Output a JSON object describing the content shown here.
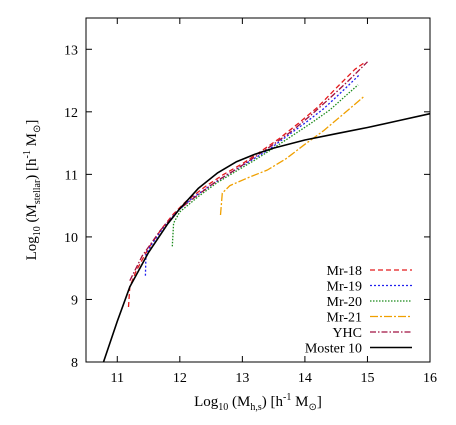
{
  "chart_data": {
    "type": "line",
    "title": "",
    "xlabel": {
      "prefix": "Log",
      "prefix_sub": "10",
      "open": " (M",
      "main_sub": "h,s",
      "unit_open": ") [h",
      "unit_sup": "-1",
      "unit_mid": " M",
      "unit_sub": "⊙",
      "unit_close": "]"
    },
    "ylabel": {
      "prefix": "Log",
      "prefix_sub": "10",
      "open": " (M",
      "main_sub": "stellar",
      "unit_open": ") [h",
      "unit_sup": "-1",
      "unit_mid": " M",
      "unit_sub": "⊙",
      "unit_close": "]"
    },
    "xlim": [
      10.5,
      16
    ],
    "ylim": [
      8,
      13.5
    ],
    "x_ticks": [
      11,
      12,
      13,
      14,
      15,
      16
    ],
    "y_ticks": [
      8,
      9,
      10,
      11,
      12,
      13
    ],
    "legend_position": "bottom-right",
    "series": [
      {
        "name": "Mr-18",
        "color": "#e41a1c",
        "dash": "5,3",
        "points": [
          [
            11.18,
            8.88
          ],
          [
            11.2,
            9.2
          ],
          [
            11.3,
            9.45
          ],
          [
            11.5,
            9.82
          ],
          [
            11.7,
            10.12
          ],
          [
            11.9,
            10.37
          ],
          [
            12.1,
            10.57
          ],
          [
            12.4,
            10.8
          ],
          [
            12.7,
            11.0
          ],
          [
            13.0,
            11.17
          ],
          [
            13.3,
            11.37
          ],
          [
            13.6,
            11.58
          ],
          [
            13.9,
            11.82
          ],
          [
            14.2,
            12.07
          ],
          [
            14.5,
            12.38
          ],
          [
            14.8,
            12.68
          ],
          [
            14.97,
            12.8
          ]
        ]
      },
      {
        "name": "Mr-19",
        "color": "#2020ee",
        "dash": "2,2",
        "points": [
          [
            11.45,
            9.38
          ],
          [
            11.46,
            9.72
          ],
          [
            11.55,
            9.88
          ],
          [
            11.75,
            10.17
          ],
          [
            11.95,
            10.4
          ],
          [
            12.2,
            10.62
          ],
          [
            12.5,
            10.83
          ],
          [
            12.8,
            11.02
          ],
          [
            13.1,
            11.2
          ],
          [
            13.4,
            11.38
          ],
          [
            13.7,
            11.6
          ],
          [
            14.0,
            11.82
          ],
          [
            14.3,
            12.05
          ],
          [
            14.6,
            12.33
          ],
          [
            14.88,
            12.6
          ]
        ]
      },
      {
        "name": "Mr-20",
        "color": "#1a8a1a",
        "dash": "1.5,1.5",
        "points": [
          [
            11.88,
            9.85
          ],
          [
            11.9,
            10.22
          ],
          [
            12.0,
            10.4
          ],
          [
            12.3,
            10.65
          ],
          [
            12.6,
            10.87
          ],
          [
            12.9,
            11.05
          ],
          [
            13.2,
            11.23
          ],
          [
            13.5,
            11.42
          ],
          [
            13.8,
            11.62
          ],
          [
            14.1,
            11.82
          ],
          [
            14.4,
            12.03
          ],
          [
            14.7,
            12.3
          ],
          [
            14.85,
            12.43
          ]
        ]
      },
      {
        "name": "Mr-21",
        "color": "#f0a000",
        "dash": "8,2,2,2",
        "points": [
          [
            12.65,
            10.35
          ],
          [
            12.68,
            10.7
          ],
          [
            12.8,
            10.82
          ],
          [
            13.1,
            10.95
          ],
          [
            13.4,
            11.07
          ],
          [
            13.7,
            11.25
          ],
          [
            14.0,
            11.48
          ],
          [
            14.3,
            11.7
          ],
          [
            14.6,
            11.95
          ],
          [
            14.95,
            12.25
          ]
        ]
      },
      {
        "name": "YHC",
        "color": "#a01040",
        "dash": "6,2,1.5,2",
        "points": [
          [
            11.2,
            9.3
          ],
          [
            11.4,
            9.7
          ],
          [
            11.7,
            10.12
          ],
          [
            12.0,
            10.45
          ],
          [
            12.3,
            10.68
          ],
          [
            12.6,
            10.9
          ],
          [
            12.9,
            11.08
          ],
          [
            13.2,
            11.28
          ],
          [
            13.5,
            11.48
          ],
          [
            13.8,
            11.7
          ],
          [
            14.1,
            11.95
          ],
          [
            14.4,
            12.22
          ],
          [
            14.7,
            12.5
          ],
          [
            15.0,
            12.8
          ]
        ]
      },
      {
        "name": "Moster 10",
        "color": "#000000",
        "dash": "",
        "points": [
          [
            10.78,
            8.0
          ],
          [
            11.0,
            8.65
          ],
          [
            11.2,
            9.2
          ],
          [
            11.5,
            9.75
          ],
          [
            11.8,
            10.2
          ],
          [
            12.0,
            10.45
          ],
          [
            12.3,
            10.78
          ],
          [
            12.6,
            11.02
          ],
          [
            12.9,
            11.2
          ],
          [
            13.2,
            11.32
          ],
          [
            13.5,
            11.42
          ],
          [
            14.0,
            11.55
          ],
          [
            14.5,
            11.65
          ],
          [
            15.0,
            11.75
          ],
          [
            15.5,
            11.86
          ],
          [
            16.0,
            11.97
          ]
        ]
      }
    ]
  }
}
